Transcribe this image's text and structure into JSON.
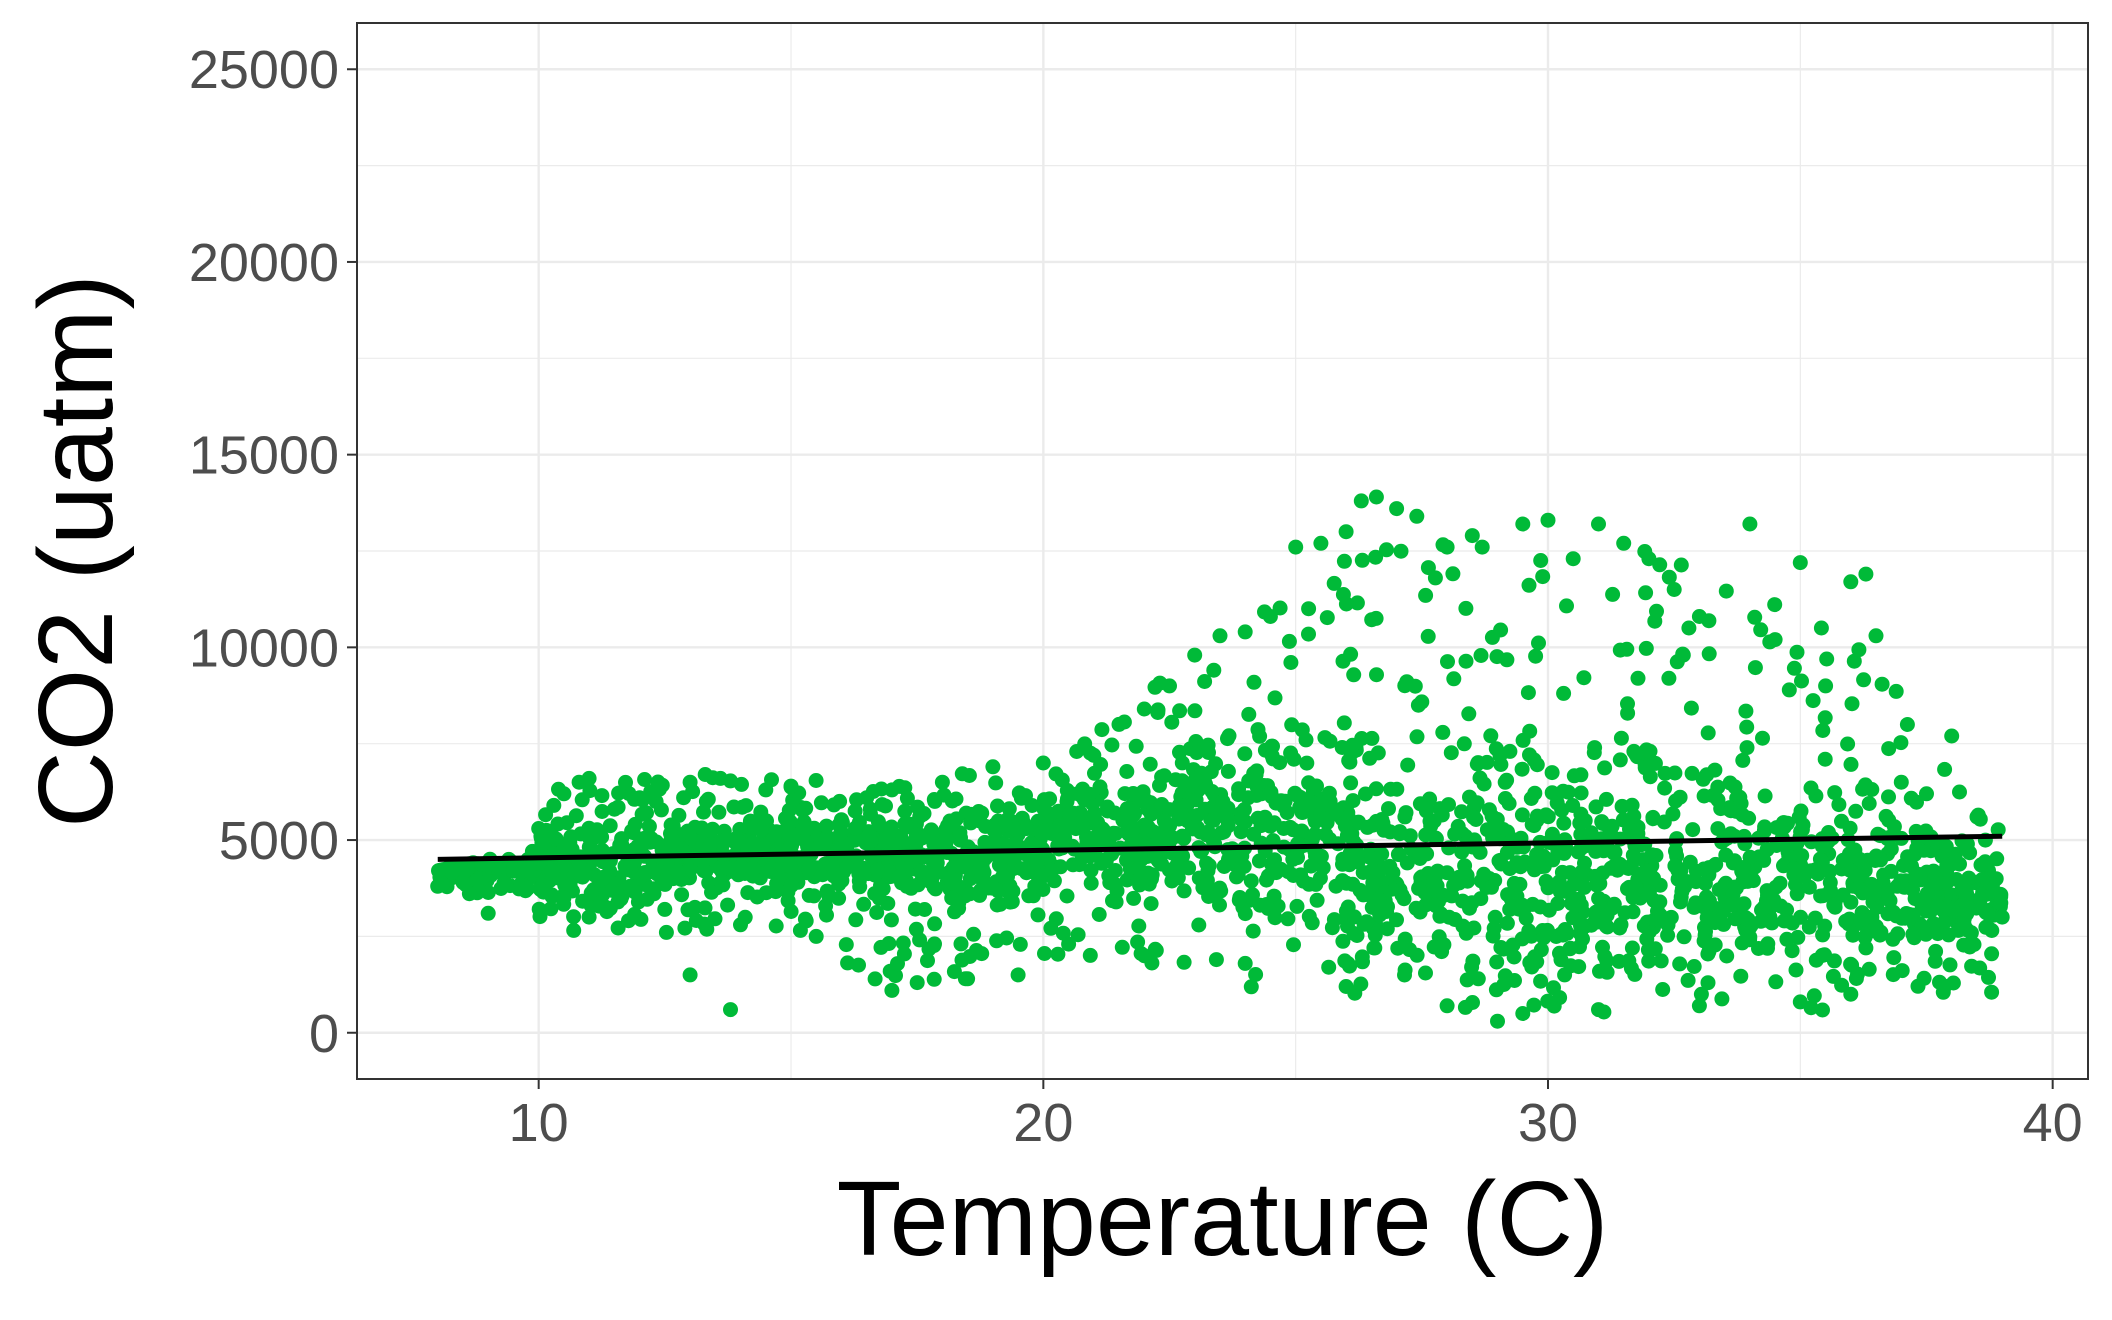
{
  "chart_data": {
    "type": "scatter",
    "xlabel": "Temperature (C)",
    "ylabel": "CO2 (uatm)",
    "xlim": [
      6.4,
      40.7
    ],
    "ylim": [
      -1200,
      26200
    ],
    "x_ticks": [
      10,
      20,
      30,
      40
    ],
    "y_ticks": [
      0,
      5000,
      10000,
      15000,
      20000,
      25000
    ],
    "grid": true,
    "colors": {
      "points": "#00BA38",
      "trend": "#000000",
      "grid": "#EBEBEB",
      "axis_text": "#4D4D4D"
    },
    "trend_line": {
      "x": [
        8.0,
        39.0
      ],
      "y": [
        4500,
        5100
      ]
    },
    "series": [
      {
        "type": "scatter",
        "points_sample": [
          [
            8.0,
            3800
          ],
          [
            8.5,
            3900
          ],
          [
            9.0,
            3100
          ],
          [
            9.5,
            4200
          ],
          [
            10.0,
            5300
          ],
          [
            10.3,
            5900
          ],
          [
            10.5,
            6200
          ],
          [
            10.8,
            6500
          ],
          [
            11.0,
            6600
          ],
          [
            10.5,
            3500
          ],
          [
            11.0,
            3000
          ],
          [
            11.5,
            5800
          ],
          [
            12.0,
            6100
          ],
          [
            12.5,
            3200
          ],
          [
            13.0,
            6500
          ],
          [
            13.3,
            6700
          ],
          [
            13.6,
            6600
          ],
          [
            14.0,
            2800
          ],
          [
            14.5,
            6300
          ],
          [
            15.0,
            6400
          ],
          [
            15.5,
            2500
          ],
          [
            16.0,
            5200
          ],
          [
            16.5,
            6100
          ],
          [
            17.0,
            1100
          ],
          [
            17.0,
            6300
          ],
          [
            17.5,
            1300
          ],
          [
            18.0,
            6500
          ],
          [
            18.5,
            1400
          ],
          [
            19.0,
            6900
          ],
          [
            19.5,
            1500
          ],
          [
            20.0,
            7000
          ],
          [
            20.5,
            2300
          ],
          [
            21.0,
            7200
          ],
          [
            21.5,
            8000
          ],
          [
            22.0,
            8400
          ],
          [
            22.5,
            9000
          ],
          [
            23.0,
            9800
          ],
          [
            23.5,
            10300
          ],
          [
            24.0,
            10400
          ],
          [
            24.5,
            10800
          ],
          [
            25.0,
            12600
          ],
          [
            25.5,
            12700
          ],
          [
            26.0,
            13000
          ],
          [
            26.3,
            13800
          ],
          [
            26.6,
            13900
          ],
          [
            27.0,
            13600
          ],
          [
            27.4,
            13400
          ],
          [
            28.0,
            12600
          ],
          [
            28.5,
            12900
          ],
          [
            29.0,
            300
          ],
          [
            29.5,
            13200
          ],
          [
            30.0,
            13300
          ],
          [
            30.5,
            12300
          ],
          [
            31.0,
            13200
          ],
          [
            31.5,
            12700
          ],
          [
            32.0,
            12300
          ],
          [
            32.5,
            11500
          ],
          [
            33.0,
            10800
          ],
          [
            34.0,
            13200
          ],
          [
            34.5,
            10200
          ],
          [
            35.0,
            12200
          ],
          [
            35.5,
            9000
          ],
          [
            36.0,
            11700
          ],
          [
            36.3,
            11900
          ],
          [
            36.5,
            10300
          ],
          [
            37.0,
            6500
          ],
          [
            37.5,
            6200
          ],
          [
            38.0,
            7700
          ],
          [
            38.5,
            5600
          ],
          [
            39.0,
            3000
          ],
          [
            36.0,
            1000
          ],
          [
            35.0,
            800
          ],
          [
            33.0,
            700
          ],
          [
            31.0,
            600
          ],
          [
            29.5,
            500
          ],
          [
            28.0,
            700
          ],
          [
            26.0,
            1200
          ],
          [
            24.0,
            1800
          ],
          [
            22.0,
            2000
          ],
          [
            13.0,
            1500
          ],
          [
            13.8,
            600
          ]
        ]
      }
    ]
  }
}
